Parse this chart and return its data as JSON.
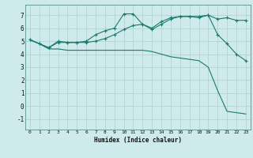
{
  "xlabel": "Humidex (Indice chaleur)",
  "background_color": "#ceeaea",
  "grid_color": "#aed0d0",
  "line_color": "#1a7a6e",
  "xlim": [
    -0.5,
    23.5
  ],
  "ylim": [
    -1.8,
    7.8
  ],
  "yticks": [
    -1,
    0,
    1,
    2,
    3,
    4,
    5,
    6,
    7
  ],
  "xticks": [
    0,
    1,
    2,
    3,
    4,
    5,
    6,
    7,
    8,
    9,
    10,
    11,
    12,
    13,
    14,
    15,
    16,
    17,
    18,
    19,
    20,
    21,
    22,
    23
  ],
  "line1_x": [
    0,
    1,
    2,
    3,
    4,
    5,
    6,
    7,
    8,
    9,
    10,
    11,
    12,
    13,
    14,
    15,
    16,
    17,
    18,
    19,
    20,
    21,
    22,
    23
  ],
  "line1_y": [
    5.1,
    4.8,
    4.5,
    4.9,
    4.9,
    4.9,
    4.9,
    5.0,
    5.2,
    5.5,
    5.9,
    6.2,
    6.3,
    6.0,
    6.5,
    6.8,
    6.9,
    6.9,
    6.9,
    7.0,
    6.7,
    6.8,
    6.6,
    6.6
  ],
  "line2_x": [
    0,
    1,
    2,
    3,
    4,
    5,
    6,
    7,
    8,
    9,
    10,
    11,
    12,
    13,
    14,
    15,
    16,
    17,
    18,
    19,
    20,
    21,
    22,
    23
  ],
  "line2_y": [
    5.1,
    4.8,
    4.5,
    5.0,
    4.9,
    4.9,
    5.0,
    5.5,
    5.8,
    6.0,
    7.1,
    7.1,
    6.3,
    5.9,
    6.3,
    6.7,
    6.9,
    6.9,
    6.8,
    7.0,
    5.5,
    4.8,
    4.0,
    3.5
  ],
  "line3_x": [
    0,
    1,
    2,
    3,
    4,
    5,
    6,
    7,
    8,
    9,
    10,
    11,
    12,
    13,
    14,
    15,
    16,
    17,
    18,
    19,
    20,
    21,
    22,
    23
  ],
  "line3_y": [
    5.1,
    4.8,
    4.4,
    4.4,
    4.3,
    4.3,
    4.3,
    4.3,
    4.3,
    4.3,
    4.3,
    4.3,
    4.3,
    4.2,
    4.0,
    3.8,
    3.7,
    3.6,
    3.5,
    3.0,
    1.2,
    -0.4,
    -0.5,
    -0.6
  ]
}
